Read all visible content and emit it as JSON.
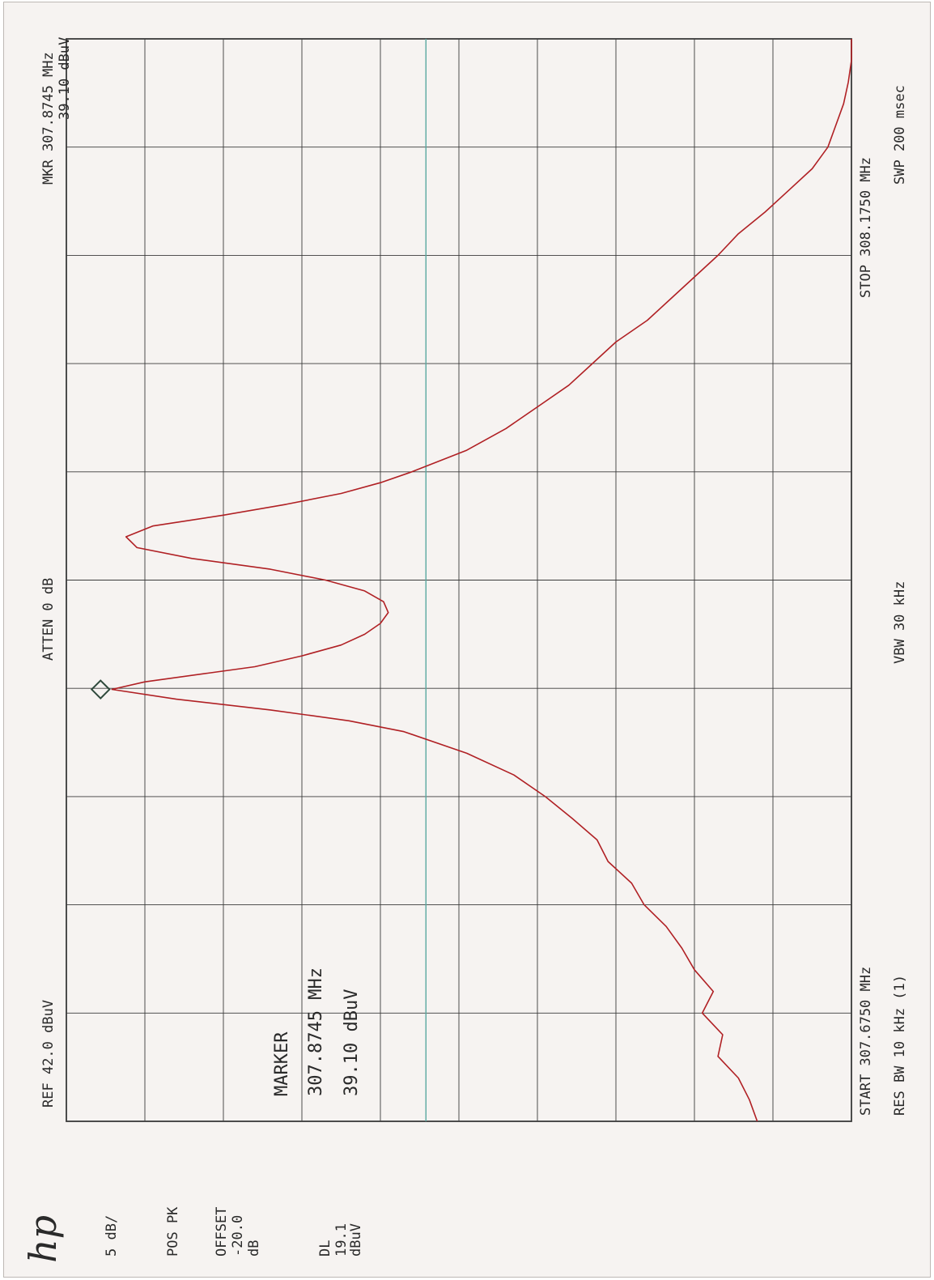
{
  "panel": {
    "logo": "hp",
    "scale": "5 dB/",
    "detector": "POS PK",
    "offset_label": "OFFSET",
    "offset_value": "-20.0",
    "offset_unit": "dB",
    "dl_label": "DL",
    "dl_value": "19.1",
    "dl_unit": "dBuV"
  },
  "header": {
    "ref": "REF 42.0 dBuV",
    "atten": "ATTEN 0 dB",
    "mkr_freq": "MKR 307.8745 MHz",
    "mkr_level": "39.10 dBuV"
  },
  "footer": {
    "start": "START 307.6750 MHz",
    "stop": "STOP 308.1750 MHz",
    "rbw": "RES BW 10 kHz (1)",
    "vbw": "VBW 30 kHz",
    "swp": "SWP 200 msec"
  },
  "marker_box": {
    "title": "MARKER",
    "freq": "307.8745 MHz",
    "level": "39.10 dBuV"
  },
  "colors": {
    "trace": "#b02024",
    "grid": "#3a3a3a",
    "display_line": "#5aa8a0",
    "marker": "#2f4a3c",
    "paper": "#f6f3f1"
  },
  "chart_data": {
    "type": "line",
    "title": "",
    "xlabel": "",
    "ylabel": "",
    "x_unit": "MHz",
    "y_unit": "dBuV",
    "xlim": [
      307.675,
      308.175
    ],
    "ylim": [
      -8,
      42
    ],
    "y_per_div": 5,
    "grid": true,
    "display_line": 19.1,
    "marker": {
      "x": 307.8745,
      "y": 39.1
    },
    "series": [
      {
        "x": [
          307.675,
          307.685,
          307.695,
          307.705,
          307.715,
          307.725,
          307.735,
          307.745,
          307.755,
          307.765,
          307.775,
          307.785,
          307.795,
          307.805,
          307.815,
          307.825,
          307.835,
          307.845,
          307.855,
          307.86,
          307.865,
          307.87,
          307.8745,
          307.878,
          307.882,
          307.885,
          307.89,
          307.895,
          307.9,
          307.905,
          307.91,
          307.915,
          307.92,
          307.925,
          307.93,
          307.935,
          307.94,
          307.945,
          307.95,
          307.955,
          307.96,
          307.965,
          307.97,
          307.975,
          307.985,
          307.995,
          308.005,
          308.015,
          308.025,
          308.035,
          308.045,
          308.055,
          308.065,
          308.075,
          308.085,
          308.095,
          308.105,
          308.115,
          308.125,
          308.135,
          308.145,
          308.155,
          308.165,
          308.175
        ],
        "y": [
          -2.0,
          -1.5,
          -0.8,
          0.5,
          0.2,
          1.5,
          0.8,
          2.0,
          2.8,
          3.8,
          5.2,
          6.0,
          7.5,
          8.2,
          9.8,
          11.5,
          13.5,
          16.5,
          20.5,
          24.0,
          29.0,
          35.0,
          39.1,
          37.0,
          33.0,
          30.0,
          27.0,
          24.5,
          23.0,
          22.0,
          21.5,
          21.8,
          23.0,
          25.5,
          29.0,
          34.0,
          37.5,
          38.2,
          36.5,
          32.0,
          28.0,
          24.5,
          22.0,
          20.0,
          16.5,
          14.0,
          12.0,
          10.0,
          8.5,
          7.0,
          5.0,
          3.5,
          2.0,
          0.5,
          -0.8,
          -2.5,
          -4.0,
          -5.5,
          -6.5,
          -7.0,
          -7.5,
          -7.8,
          -8.0,
          -8.0
        ]
      }
    ]
  }
}
